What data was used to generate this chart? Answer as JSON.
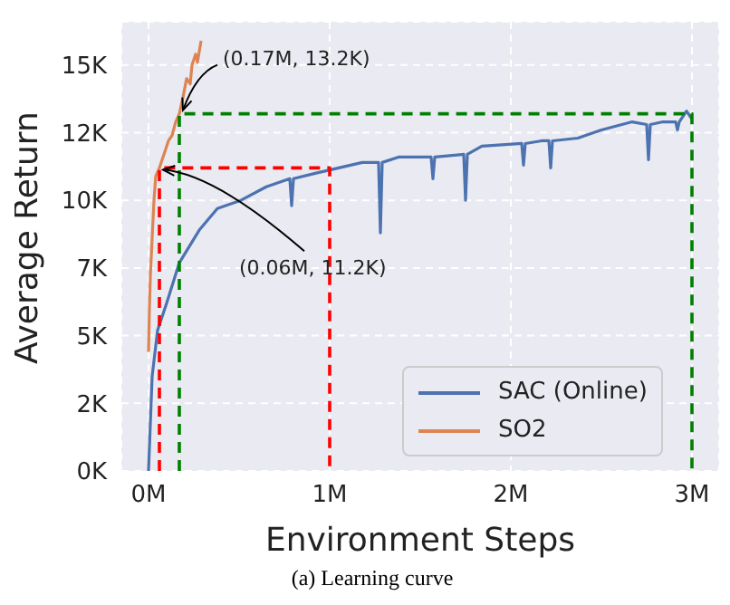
{
  "chart_data": {
    "type": "line",
    "xlabel": "Environment Steps",
    "ylabel": "Average Return",
    "xlim": [
      -0.15,
      3.15
    ],
    "ylim": [
      0,
      16600
    ],
    "xticks": [
      {
        "value": 0,
        "label": "0M"
      },
      {
        "value": 1,
        "label": "1M"
      },
      {
        "value": 2,
        "label": "2M"
      },
      {
        "value": 3,
        "label": "3M"
      }
    ],
    "yticks": [
      {
        "value": 0,
        "label": "0K"
      },
      {
        "value": 2500,
        "label": "2K"
      },
      {
        "value": 5000,
        "label": "5K"
      },
      {
        "value": 7500,
        "label": "7K"
      },
      {
        "value": 10000,
        "label": "10K"
      },
      {
        "value": 12500,
        "label": "12K"
      },
      {
        "value": 15000,
        "label": "15K"
      }
    ],
    "grid": true,
    "legend": "bottom right",
    "marker": "none",
    "line_style": "solid",
    "series": [
      {
        "name": "SAC (Online)",
        "color": "#4c72b0",
        "x": [
          0,
          0.02,
          0.05,
          0.1,
          0.17,
          0.18,
          0.28,
          0.38,
          0.51,
          0.65,
          0.78,
          0.79,
          0.8,
          0.92,
          1.05,
          1.18,
          1.27,
          1.28,
          1.29,
          1.38,
          1.56,
          1.57,
          1.58,
          1.74,
          1.75,
          1.76,
          1.84,
          2.06,
          2.07,
          2.08,
          2.17,
          2.21,
          2.22,
          2.23,
          2.37,
          2.5,
          2.67,
          2.75,
          2.76,
          2.77,
          2.84,
          2.91,
          2.92,
          2.93,
          2.97,
          3.0
        ],
        "values": [
          0,
          3500,
          5200,
          6200,
          7700,
          7800,
          8900,
          9700,
          10000,
          10500,
          10800,
          9800,
          10800,
          11000,
          11200,
          11400,
          11400,
          8800,
          11400,
          11600,
          11600,
          10800,
          11600,
          11700,
          10000,
          11700,
          12000,
          12100,
          11300,
          12100,
          12200,
          12200,
          11200,
          12200,
          12300,
          12600,
          12900,
          12800,
          11500,
          12800,
          12900,
          12900,
          12600,
          12900,
          13300,
          13000
        ]
      },
      {
        "name": "SO2",
        "color": "#dd8452",
        "x": [
          0,
          0.005,
          0.01,
          0.03,
          0.04,
          0.06,
          0.08,
          0.11,
          0.13,
          0.15,
          0.17,
          0.19,
          0.21,
          0.23,
          0.24,
          0.26,
          0.27,
          0.29
        ],
        "values": [
          4400,
          6000,
          7200,
          10000,
          10900,
          11200,
          11600,
          12200,
          12400,
          12900,
          13200,
          13800,
          14500,
          14300,
          15000,
          15400,
          15100,
          15900
        ]
      },
      {
        "color": "#ff0000",
        "line_style": "dashed",
        "x": [
          0.06,
          0.06,
          1,
          1
        ],
        "values": [
          0,
          11200,
          11200,
          0
        ]
      },
      {
        "color": "#008000",
        "line_style": "dashed",
        "x": [
          0.17,
          0.17,
          3,
          3
        ],
        "values": [
          0,
          13200,
          13200,
          0
        ]
      }
    ],
    "annotations": [
      {
        "text": "(0.17M, 13.2K)",
        "x": 0.17,
        "y": 13200
      },
      {
        "text": "(0.06M, 11.2K)",
        "x": 0.06,
        "y": 11200
      },
      "(a) Learning curve"
    ]
  }
}
